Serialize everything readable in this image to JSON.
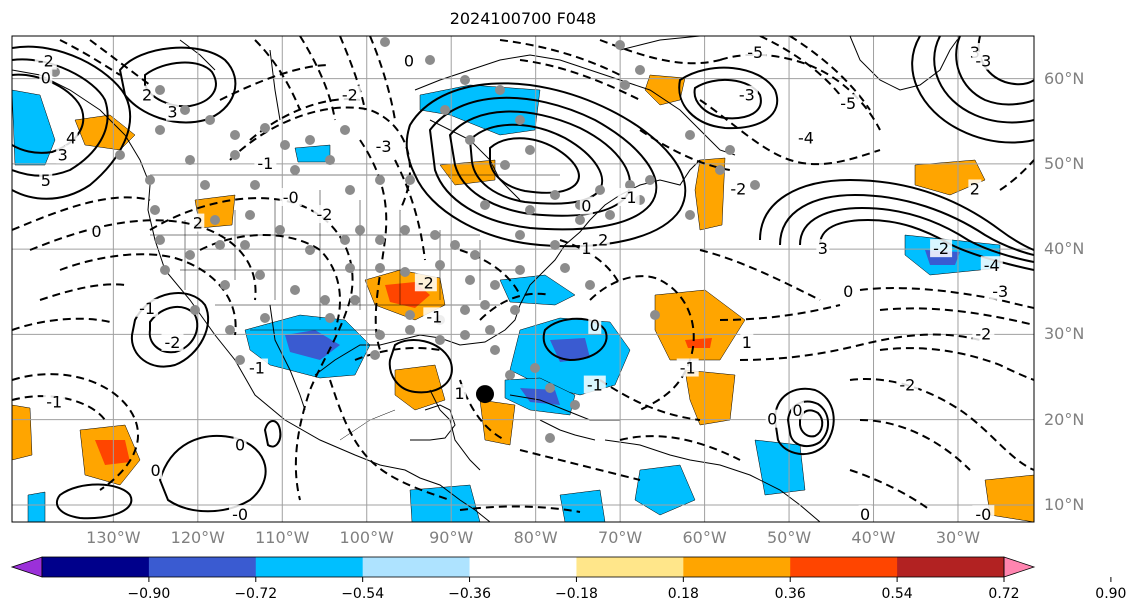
{
  "title": "2024100700 F048",
  "map": {
    "lat_labels": [
      {
        "text": "60°N",
        "lat": 60
      },
      {
        "text": "50°N",
        "lat": 50
      },
      {
        "text": "40°N",
        "lat": 40
      },
      {
        "text": "30°N",
        "lat": 30
      },
      {
        "text": "20°N",
        "lat": 20
      },
      {
        "text": "10°N",
        "lat": 10
      }
    ],
    "lon_labels": [
      {
        "text": "130°W",
        "lon": -130
      },
      {
        "text": "120°W",
        "lon": -120
      },
      {
        "text": "110°W",
        "lon": -110
      },
      {
        "text": "100°W",
        "lon": -100
      },
      {
        "text": "90°W",
        "lon": -90
      },
      {
        "text": "80°W",
        "lon": -80
      },
      {
        "text": "70°W",
        "lon": -70
      },
      {
        "text": "60°W",
        "lon": -60
      },
      {
        "text": "50°W",
        "lon": -50
      },
      {
        "text": "40°W",
        "lon": -40
      },
      {
        "text": "30°W",
        "lon": -30
      }
    ],
    "lon_range": [
      -142,
      -21
    ],
    "lat_range": [
      8,
      65
    ],
    "grid_color": "#a0a0a0",
    "contour_labels": [
      {
        "text": "2",
        "lon": -126,
        "lat": 58
      },
      {
        "text": "3",
        "lon": -123,
        "lat": 56
      },
      {
        "text": "4",
        "lon": -135,
        "lat": 53
      },
      {
        "text": "3",
        "lon": -136,
        "lat": 51
      },
      {
        "text": "5",
        "lon": -138,
        "lat": 48
      },
      {
        "text": "0",
        "lon": -138,
        "lat": 60
      },
      {
        "text": "0",
        "lon": -132,
        "lat": 42
      },
      {
        "text": "2",
        "lon": -120,
        "lat": 43
      },
      {
        "text": "-1",
        "lon": -126,
        "lat": 33
      },
      {
        "text": "-2",
        "lon": -123,
        "lat": 29
      },
      {
        "text": "-1",
        "lon": -113,
        "lat": 26
      },
      {
        "text": "-1",
        "lon": -137,
        "lat": 22
      },
      {
        "text": "0",
        "lon": -125,
        "lat": 14
      },
      {
        "text": "0",
        "lon": -115,
        "lat": 17
      },
      {
        "text": "-0",
        "lon": -115,
        "lat": 8.8
      },
      {
        "text": "-1",
        "lon": -112,
        "lat": 50
      },
      {
        "text": "-0",
        "lon": -109,
        "lat": 46
      },
      {
        "text": "-2",
        "lon": -105,
        "lat": 44
      },
      {
        "text": "-3",
        "lon": -98,
        "lat": 52
      },
      {
        "text": "-2",
        "lon": -102,
        "lat": 58
      },
      {
        "text": "0",
        "lon": -95,
        "lat": 62
      },
      {
        "text": "-2",
        "lon": -93,
        "lat": 36
      },
      {
        "text": "-1",
        "lon": -92,
        "lat": 32
      },
      {
        "text": "1",
        "lon": -89,
        "lat": 23
      },
      {
        "text": "0",
        "lon": -73,
        "lat": 31
      },
      {
        "text": "-1",
        "lon": -73,
        "lat": 24
      },
      {
        "text": "0",
        "lon": -74,
        "lat": 45
      },
      {
        "text": "2",
        "lon": -72,
        "lat": 41
      },
      {
        "text": "1",
        "lon": -74,
        "lat": 40
      },
      {
        "text": "-1",
        "lon": -69,
        "lat": 46
      },
      {
        "text": "-5",
        "lon": -54,
        "lat": 63
      },
      {
        "text": "-3",
        "lon": -55,
        "lat": 58
      },
      {
        "text": "-4",
        "lon": -48,
        "lat": 53
      },
      {
        "text": "-5",
        "lon": -43,
        "lat": 57
      },
      {
        "text": "-2",
        "lon": -56,
        "lat": 47
      },
      {
        "text": "2",
        "lon": -28,
        "lat": 47
      },
      {
        "text": "3",
        "lon": -46,
        "lat": 40
      },
      {
        "text": "0",
        "lon": -43,
        "lat": 35
      },
      {
        "text": "-2",
        "lon": -36,
        "lat": 24
      },
      {
        "text": "1",
        "lon": -55,
        "lat": 29
      },
      {
        "text": "-1",
        "lon": -62,
        "lat": 26
      },
      {
        "text": "0",
        "lon": -52,
        "lat": 20
      },
      {
        "text": "0",
        "lon": -49,
        "lat": 21
      },
      {
        "text": "0",
        "lon": -41,
        "lat": 8.8
      },
      {
        "text": "-0",
        "lon": -27,
        "lat": 8.8
      },
      {
        "text": "-2",
        "lon": -27,
        "lat": 30
      },
      {
        "text": "-3",
        "lon": -25,
        "lat": 35
      },
      {
        "text": "-2",
        "lon": -32,
        "lat": 40
      },
      {
        "text": "-4",
        "lon": -26,
        "lat": 38
      },
      {
        "text": "-2",
        "lon": -138,
        "lat": 62
      },
      {
        "text": "3",
        "lon": -28,
        "lat": 63
      },
      {
        "text": "-3",
        "lon": -27,
        "lat": 62
      }
    ],
    "storm_marker": {
      "lon": -86,
      "lat": 23
    }
  },
  "colorbar": {
    "ticks": [
      "−0.90",
      "−0.72",
      "−0.54",
      "−0.36",
      "−0.18",
      "0.18",
      "0.36",
      "0.54",
      "0.72",
      "0.90"
    ],
    "colors": [
      "#9b30d9",
      "#00008b",
      "#3a5bd1",
      "#00bfff",
      "#aee3ff",
      "#ffffff",
      "#ffe68a",
      "#ffa500",
      "#ff4500",
      "#b22222",
      "#ff85b0"
    ]
  }
}
